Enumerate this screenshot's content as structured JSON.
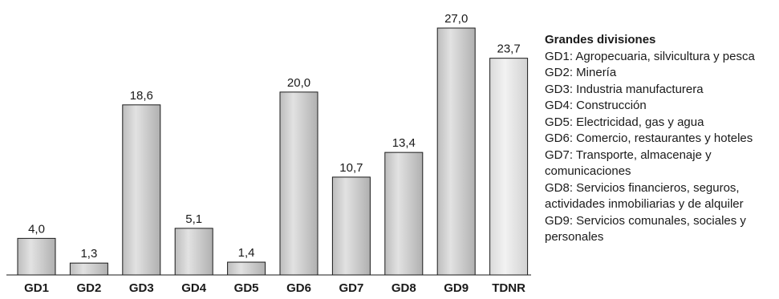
{
  "chart_data": {
    "type": "bar",
    "categories": [
      "GD1",
      "GD2",
      "GD3",
      "GD4",
      "GD5",
      "GD6",
      "GD7",
      "GD8",
      "GD9",
      "TDNR"
    ],
    "values": [
      4.0,
      1.3,
      18.6,
      5.1,
      1.4,
      20.0,
      10.7,
      13.4,
      27.0,
      23.7
    ],
    "value_labels": [
      "4,0",
      "1,3",
      "18,6",
      "5,1",
      "1,4",
      "20,0",
      "10,7",
      "13,4",
      "27,0",
      "23,7"
    ],
    "ylim": [
      0,
      27.0
    ],
    "grid": false,
    "legend_position": "right",
    "colors": {
      "bar": "#c8c8c8",
      "bar_highlight": "#e6e6e6",
      "bar_last": "#e3e3e3",
      "outline": "#1a1a1a"
    }
  },
  "legend": {
    "title": "Grandes divisiones",
    "items": [
      "GD1: Agropecuaria, silvicultura y pesca",
      "GD2: Minería",
      "GD3: Industria manufacturera",
      "GD4: Construcción",
      "GD5: Electricidad, gas y agua",
      "GD6: Comercio, restaurantes y hoteles",
      "GD7: Transporte, almacenaje y",
      "comunicaciones",
      "GD8: Servicios financieros, seguros,",
      "actividades inmobiliarias y de alquiler",
      "GD9: Servicios comunales, sociales y",
      "personales"
    ]
  }
}
